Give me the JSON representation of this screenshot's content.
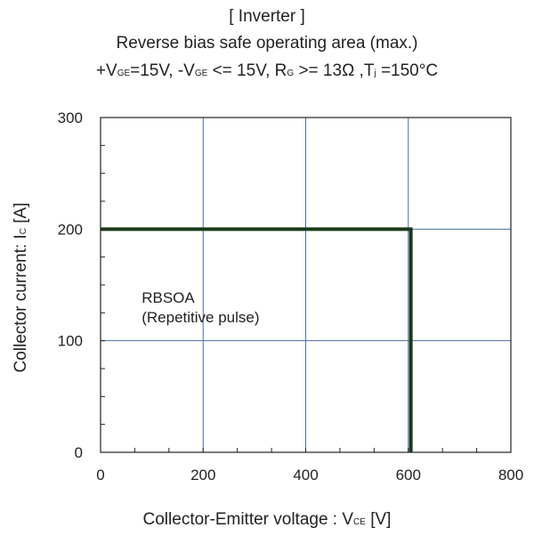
{
  "chart_data": {
    "type": "line",
    "title": "[ Inverter ]",
    "subtitle": "Reverse bias safe operating area (max.)",
    "conditions": {
      "p1": "+V",
      "s1": "GE",
      "p2": "=15V, -V",
      "s2": "GE",
      "p3": " <= 15V, R",
      "s3": "G",
      "p4": " >= 13Ω ,T",
      "s4": "j",
      "p5": " =150°C"
    },
    "xlabel": {
      "main": "Collector-Emitter voltage : V",
      "sub": "CE",
      "unit": " [V]"
    },
    "ylabel": {
      "main": "Collector current: I",
      "sub": "C",
      "unit": " [A]"
    },
    "xlim": [
      0,
      800
    ],
    "ylim": [
      0,
      300
    ],
    "x_ticks": [
      0,
      200,
      400,
      600,
      800
    ],
    "y_ticks": [
      0,
      100,
      200,
      300
    ],
    "x_minor_step": 66.6667,
    "y_minor_step": 25,
    "grid": true,
    "series": [
      {
        "color": "#1a3a1a",
        "x": [
          0,
          605,
          605
        ],
        "y": [
          200,
          200,
          0
        ]
      }
    ],
    "annotation": {
      "line1": "RBSOA",
      "line2": "(Repetitive pulse)",
      "x": 75,
      "y": 137
    },
    "colors": {
      "grid": "#4a6fa5",
      "axis": "#222222",
      "series": "#1a3a1a"
    }
  }
}
